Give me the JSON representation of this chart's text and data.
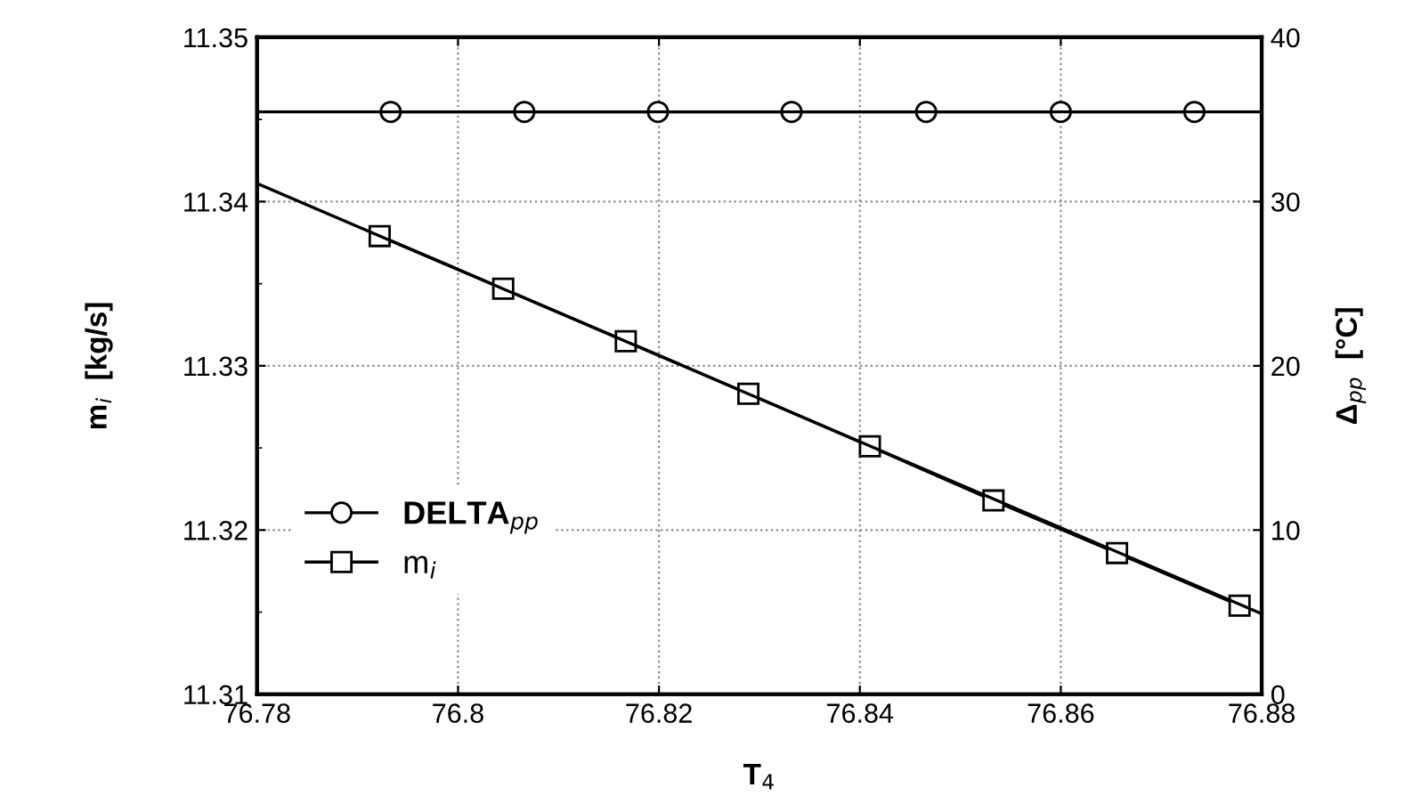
{
  "chart_data": {
    "type": "line",
    "xlabel": "T$_{4}$",
    "ylabel": "m$_{i}$  [kg/s]",
    "y2label": "Δ$_{pp}$  [°C]",
    "xlim": [
      76.78,
      76.88
    ],
    "xticks": [
      76.78,
      76.8,
      76.82,
      76.84,
      76.86,
      76.88
    ],
    "ylim": [
      11.31,
      11.35
    ],
    "yticks": [
      11.31,
      11.32,
      11.33,
      11.34,
      11.35
    ],
    "y2lim": [
      0,
      40
    ],
    "y2ticks": [
      0,
      10,
      20,
      30,
      40
    ],
    "grid": true,
    "legend": "left",
    "series": [
      {
        "name": "DELTA$_{pp}$",
        "color": "#000000",
        "axis": "y2",
        "marker": "circle",
        "x": [
          76.7933,
          76.8066,
          76.8199,
          76.8332,
          76.8466,
          76.86,
          76.8733
        ],
        "values": [
          35.46,
          35.46,
          35.46,
          35.46,
          35.46,
          35.46,
          35.46
        ]
      },
      {
        "name": "m$_{i}$",
        "color": "#000000",
        "axis": "y",
        "marker": "square",
        "x": [
          76.7922,
          76.8045,
          76.8167,
          76.8289,
          76.841,
          76.8533,
          76.8656,
          76.8778
        ],
        "values": [
          11.3379,
          11.3347,
          11.3315,
          11.3283,
          11.3251,
          11.3218,
          11.3186,
          11.3154
        ]
      },
      {
        "type": "line",
        "color": "#000000",
        "axis": "y2",
        "marker": "none",
        "x": [
          76.78,
          76.88
        ],
        "values": [
          35.46,
          35.46
        ]
      },
      {
        "type": "line",
        "color": "#000000",
        "axis": "y",
        "marker": "none",
        "x": [
          76.78,
          76.88
        ],
        "values": [
          11.3411,
          11.3149
        ]
      }
    ]
  }
}
